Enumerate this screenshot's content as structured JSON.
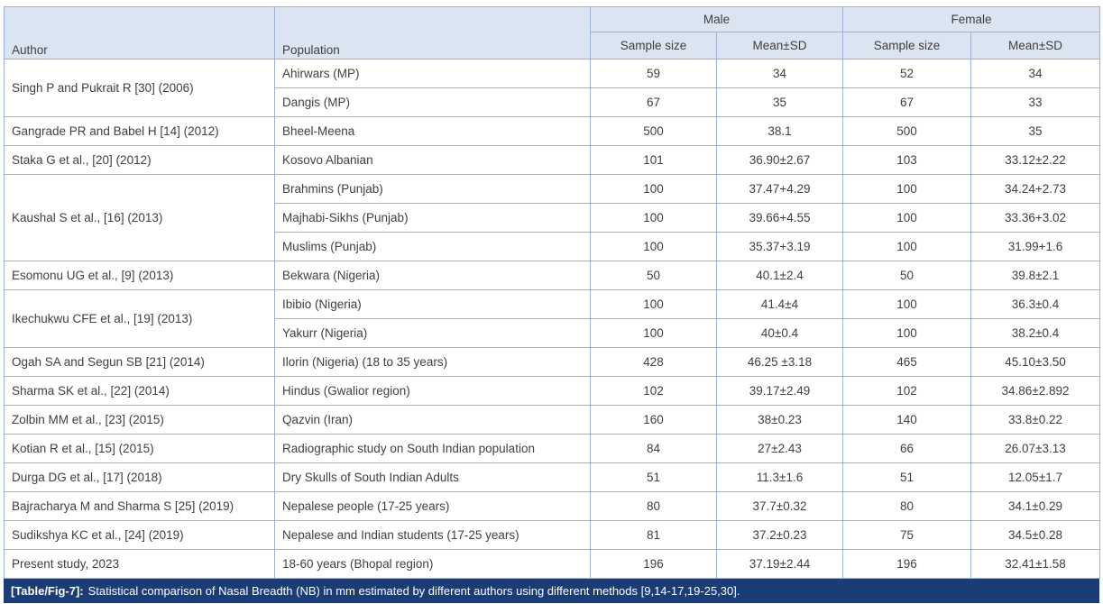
{
  "colors": {
    "header-bg": "#dbe5f2",
    "header-text": "#2b5a9b",
    "border-color": "#9db3d6",
    "body-text": "#3f3f3f",
    "caption-bg": "#1b3c74",
    "caption-text": "#ffffff"
  },
  "table": {
    "headers": {
      "author": "Author",
      "population": "Population",
      "male": "Male",
      "female": "Female",
      "sample_size": "Sample size",
      "mean_sd": "Mean±SD"
    },
    "groups": [
      {
        "author": "Singh P and Pukrait R [30] (2006)",
        "entries": [
          {
            "population": "Ahirwars (MP)",
            "male_n": "59",
            "male_mean": "34",
            "female_n": "52",
            "female_mean": "34"
          },
          {
            "population": "Dangis (MP)",
            "male_n": "67",
            "male_mean": "35",
            "female_n": "67",
            "female_mean": "33"
          }
        ]
      },
      {
        "author": "Gangrade PR and Babel H [14] (2012)",
        "entries": [
          {
            "population": "Bheel-Meena",
            "male_n": "500",
            "male_mean": "38.1",
            "female_n": "500",
            "female_mean": "35"
          }
        ]
      },
      {
        "author": "Staka G et al., [20] (2012)",
        "entries": [
          {
            "population": "Kosovo Albanian",
            "male_n": "101",
            "male_mean": "36.90±2.67",
            "female_n": "103",
            "female_mean": "33.12±2.22"
          }
        ]
      },
      {
        "author": "Kaushal S et al., [16] (2013)",
        "entries": [
          {
            "population": "Brahmins (Punjab)",
            "male_n": "100",
            "male_mean": "37.47+4.29",
            "female_n": "100",
            "female_mean": "34.24+2.73"
          },
          {
            "population": "Majhabi-Sikhs (Punjab)",
            "male_n": "100",
            "male_mean": "39.66+4.55",
            "female_n": "100",
            "female_mean": "33.36+3.02"
          },
          {
            "population": "Muslims (Punjab)",
            "male_n": "100",
            "male_mean": "35.37+3.19",
            "female_n": "100",
            "female_mean": "31.99+1.6"
          }
        ]
      },
      {
        "author": "Esomonu UG et al., [9] (2013)",
        "entries": [
          {
            "population": "Bekwara (Nigeria)",
            "male_n": "50",
            "male_mean": "40.1±2.4",
            "female_n": "50",
            "female_mean": "39.8±2.1"
          }
        ]
      },
      {
        "author": "Ikechukwu CFE et al., [19] (2013)",
        "entries": [
          {
            "population": "Ibibio (Nigeria)",
            "male_n": "100",
            "male_mean": "41.4±4",
            "female_n": "100",
            "female_mean": "36.3±0.4"
          },
          {
            "population": "Yakurr (Nigeria)",
            "male_n": "100",
            "male_mean": "40±0.4",
            "female_n": "100",
            "female_mean": "38.2±0.4"
          }
        ]
      },
      {
        "author": "Ogah SA and Segun SB [21] (2014)",
        "entries": [
          {
            "population": "Ilorin (Nigeria) (18 to 35 years)",
            "male_n": "428",
            "male_mean": "46.25 ±3.18",
            "female_n": "465",
            "female_mean": "45.10±3.50"
          }
        ]
      },
      {
        "author": "Sharma SK et al., [22] (2014)",
        "entries": [
          {
            "population": "Hindus (Gwalior region)",
            "male_n": "102",
            "male_mean": "39.17±2.49",
            "female_n": "102",
            "female_mean": "34.86±2.892"
          }
        ]
      },
      {
        "author": "Zolbin MM et al., [23] (2015)",
        "entries": [
          {
            "population": "Qazvin (Iran)",
            "male_n": "160",
            "male_mean": "38±0.23",
            "female_n": "140",
            "female_mean": "33.8±0.22"
          }
        ]
      },
      {
        "author": "Kotian R et al., [15] (2015)",
        "entries": [
          {
            "population": "Radiographic study on South Indian population",
            "male_n": "84",
            "male_mean": "27±2.43",
            "female_n": "66",
            "female_mean": "26.07±3.13"
          }
        ]
      },
      {
        "author": "Durga DG et al., [17] (2018)",
        "entries": [
          {
            "population": "Dry Skulls of South Indian Adults",
            "male_n": "51",
            "male_mean": "11.3±1.6",
            "female_n": "51",
            "female_mean": "12.05±1.7"
          }
        ]
      },
      {
        "author": "Bajracharya M and Sharma S [25] (2019)",
        "entries": [
          {
            "population": "Nepalese people (17-25 years)",
            "male_n": "80",
            "male_mean": "37.7±0.32",
            "female_n": "80",
            "female_mean": "34.1±0.29"
          }
        ]
      },
      {
        "author": "Sudikshya KC et al., [24] (2019)",
        "entries": [
          {
            "population": "Nepalese and Indian students (17-25 years)",
            "male_n": "81",
            "male_mean": "37.2±0.23",
            "female_n": "75",
            "female_mean": "34.5±0.28"
          }
        ]
      },
      {
        "author": "Present study, 2023",
        "entries": [
          {
            "population": "18-60 years (Bhopal region)",
            "male_n": "196",
            "male_mean": "37.19±2.44",
            "female_n": "196",
            "female_mean": "32.41±1.58"
          }
        ]
      }
    ]
  },
  "caption": {
    "label": "[Table/Fig-7]:",
    "text": "Statistical comparison of Nasal Breadth (NB) in mm estimated by different authors using different methods [9,14-17,19-25,30]."
  }
}
